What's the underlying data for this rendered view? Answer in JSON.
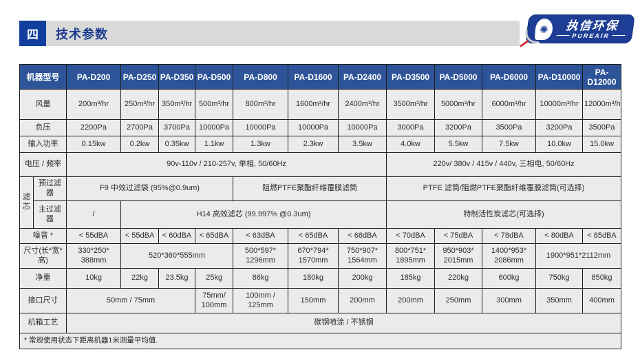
{
  "section": {
    "number": "四",
    "title": "技术参数"
  },
  "logo": {
    "icon": "fan-icon",
    "brand_cn": "执信环保",
    "brand_en": "PUREAIR"
  },
  "table": {
    "header": [
      "机器型号",
      "PA-D200",
      "PA-D250",
      "PA-D350",
      "PA-D500",
      "PA-D800",
      "PA-D1600",
      "PA-D2400",
      "PA-D3500",
      "PA-D5000",
      "PA-D6000",
      "PA-D10000",
      "PA-D12000"
    ],
    "rows": [
      {
        "label": "风量",
        "cells": [
          "200m³/hr",
          "250m³/hr",
          "350m³/hr",
          "500m³/hr",
          "800m³/hr",
          "1600m³/hr",
          "2400m³/hr",
          "3500m³/hr",
          "5000m³/hr",
          "6000m³/hr",
          "10000m³/hr",
          "12000m³/hr"
        ]
      },
      {
        "label": "负压",
        "cells": [
          "2200Pa",
          "2700Pa",
          "3700Pa",
          "10000Pa",
          "10000Pa",
          "10000Pa",
          "10000Pa",
          "3000Pa",
          "3200Pa",
          "3500Pa",
          "3200Pa",
          "3500Pa"
        ]
      },
      {
        "label": "输入功率",
        "cells": [
          "0.15kw",
          "0.2kw",
          "0.35kw",
          "1.1kw",
          "1.3kw",
          "2.3kw",
          "3.5kw",
          "4.0kw",
          "5.5kw",
          "7.5kw",
          "10.0kw",
          "15.0kw"
        ]
      },
      {
        "label": "电压 / 频率",
        "cells": [
          {
            "text": "90v-110v / 210-257v, 单相, 50/60Hz",
            "colspan": 7
          },
          {
            "text": "220v/ 380v / 415v / 440v, 三相电, 50/60Hz",
            "colspan": 5
          }
        ]
      },
      {
        "group": "滤芯",
        "label": "预过滤器",
        "cells": [
          {
            "text": "F9 中效过滤袋 (95%@0.9um)",
            "colspan": 4
          },
          {
            "text": "阻燃PTFE聚酯纤维覆膜滤筒",
            "colspan": 3
          },
          {
            "text": "PTFE 滤筒/阻燃PTFE聚酯纤维覆膜滤筒(可选择)",
            "colspan": 5
          }
        ]
      },
      {
        "in_group": true,
        "label": "主过滤器",
        "cells": [
          {
            "text": "/",
            "colspan": 1
          },
          {
            "text": "H14 高效滤芯 (99.997% @0.3um)",
            "colspan": 6
          },
          {
            "text": "特制活性炭滤芯(可选择)",
            "colspan": 5
          }
        ]
      },
      {
        "label": "噪音 *",
        "cells": [
          "< 55dBA",
          "< 55dBA",
          "< 60dBA",
          "< 65dBA",
          "< 63dBA",
          "< 65dBA",
          "< 68dBA",
          "< 70dBA",
          "< 75dBA",
          "< 78dBA",
          "< 80dBA",
          "< 85dBA"
        ]
      },
      {
        "label": "尺寸(长*宽*高)",
        "cells": [
          "330*250*\n388mm",
          {
            "text": "520*360*555mm",
            "colspan": 3
          },
          "500*597*\n1296mm",
          "670*794*\n1570mm",
          "750*907*\n1564mm",
          "800*751*\n1895mm",
          "950*903*\n2015mm",
          "1400*953*\n2086mm",
          {
            "text": "1900*951*2112mm",
            "colspan": 2
          }
        ]
      },
      {
        "label": "净重",
        "cells": [
          "10kg",
          "22kg",
          "23.5kg",
          "25kg",
          "86kg",
          "180kg",
          "200kg",
          "185kg",
          "220kg",
          "600kg",
          "750kg",
          "850kg"
        ]
      },
      {
        "label": "接口尺寸",
        "cells": [
          {
            "text": "50mm / 75mm",
            "colspan": 3
          },
          "75mm/\n100mm",
          "100mm /\n125mm",
          "150mm",
          "200mm",
          "200mm",
          "250mm",
          "300mm",
          "350mm",
          "400mm"
        ]
      },
      {
        "label": "机箱工艺",
        "cells": [
          {
            "text": "碳钢喷涂 / 不锈钢",
            "colspan": 12,
            "align": "left"
          }
        ]
      }
    ],
    "footnote": "* 常规使用状态下距离机器1米测量平均值."
  }
}
